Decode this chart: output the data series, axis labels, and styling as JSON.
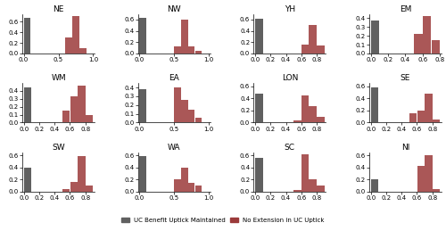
{
  "regions_order": [
    [
      "NE",
      "NW",
      "YH",
      "EM"
    ],
    [
      "WM",
      "EA",
      "LON",
      "SE"
    ],
    [
      "SW",
      "WA",
      "SC",
      "NI"
    ]
  ],
  "color_gray": "#606060",
  "color_red": "#9b3a3a",
  "color_red_alpha": 0.85,
  "legend_gray": "UC Benefit Uptick Maintained",
  "legend_red": "No Extension in UC Uptick",
  "subplots": {
    "NE": {
      "bin_width": 0.1,
      "gray_bins": [
        0.0
      ],
      "gray_vals": [
        0.68
      ],
      "red_bins": [
        0.6,
        0.7,
        0.8
      ],
      "red_vals": [
        0.3,
        0.7,
        0.1
      ],
      "xlim": [
        -0.02,
        1.02
      ],
      "ylim": [
        0,
        0.75
      ],
      "xticks": [
        0,
        0.5,
        1.0
      ],
      "yticks": [
        0,
        0.2,
        0.4,
        0.6
      ]
    },
    "NW": {
      "bin_width": 0.1,
      "gray_bins": [
        0.0
      ],
      "gray_vals": [
        0.63
      ],
      "red_bins": [
        0.5,
        0.6,
        0.7,
        0.8
      ],
      "red_vals": [
        0.12,
        0.6,
        0.12,
        0.05
      ],
      "xlim": [
        -0.02,
        1.02
      ],
      "ylim": [
        0,
        0.7
      ],
      "xticks": [
        0,
        0.5,
        1.0
      ],
      "yticks": [
        0,
        0.2,
        0.4,
        0.6
      ]
    },
    "YH": {
      "bin_width": 0.1,
      "gray_bins": [
        0.0
      ],
      "gray_vals": [
        0.62
      ],
      "red_bins": [
        0.6,
        0.7,
        0.8
      ],
      "red_vals": [
        0.16,
        0.51,
        0.14
      ],
      "xlim": [
        -0.02,
        0.92
      ],
      "ylim": [
        0,
        0.7
      ],
      "xticks": [
        0,
        0.2,
        0.4,
        0.6,
        0.8
      ],
      "yticks": [
        0,
        0.2,
        0.4,
        0.6
      ]
    },
    "EM": {
      "bin_width": 0.1,
      "gray_bins": [
        0.0
      ],
      "gray_vals": [
        0.37
      ],
      "red_bins": [
        0.5,
        0.6,
        0.7
      ],
      "red_vals": [
        0.22,
        0.42,
        0.15
      ],
      "xlim": [
        -0.02,
        0.82
      ],
      "ylim": [
        0,
        0.45
      ],
      "xticks": [
        0,
        0.2,
        0.4,
        0.6,
        0.8
      ],
      "yticks": [
        0,
        0.1,
        0.2,
        0.3,
        0.4
      ]
    },
    "WM": {
      "bin_width": 0.1,
      "gray_bins": [
        0.0
      ],
      "gray_vals": [
        0.45
      ],
      "red_bins": [
        0.5,
        0.6,
        0.7,
        0.8
      ],
      "red_vals": [
        0.15,
        0.33,
        0.47,
        0.1
      ],
      "xlim": [
        -0.02,
        0.92
      ],
      "ylim": [
        0,
        0.5
      ],
      "xticks": [
        0,
        0.2,
        0.4,
        0.6,
        0.8
      ],
      "yticks": [
        0,
        0.1,
        0.2,
        0.3,
        0.4
      ]
    },
    "EA": {
      "bin_width": 0.1,
      "gray_bins": [
        0.0
      ],
      "gray_vals": [
        0.38
      ],
      "red_bins": [
        0.5,
        0.6,
        0.7,
        0.8
      ],
      "red_vals": [
        0.4,
        0.26,
        0.15,
        0.05
      ],
      "xlim": [
        -0.02,
        1.02
      ],
      "ylim": [
        0,
        0.45
      ],
      "xticks": [
        0,
        0.5,
        1.0
      ],
      "yticks": [
        0,
        0.1,
        0.2,
        0.3,
        0.4
      ]
    },
    "LON": {
      "bin_width": 0.1,
      "gray_bins": [
        0.0
      ],
      "gray_vals": [
        0.48
      ],
      "red_bins": [
        0.5,
        0.6,
        0.7,
        0.8
      ],
      "red_vals": [
        0.04,
        0.44,
        0.27,
        0.1
      ],
      "xlim": [
        -0.02,
        0.92
      ],
      "ylim": [
        0,
        0.65
      ],
      "xticks": [
        0,
        0.2,
        0.4,
        0.6,
        0.8
      ],
      "yticks": [
        0,
        0.2,
        0.4,
        0.6
      ]
    },
    "SE": {
      "bin_width": 0.1,
      "gray_bins": [
        0.0
      ],
      "gray_vals": [
        0.58
      ],
      "red_bins": [
        0.5,
        0.6,
        0.7,
        0.8
      ],
      "red_vals": [
        0.16,
        0.2,
        0.48,
        0.05
      ],
      "xlim": [
        -0.02,
        0.92
      ],
      "ylim": [
        0,
        0.65
      ],
      "xticks": [
        0,
        0.2,
        0.4,
        0.6,
        0.8
      ],
      "yticks": [
        0,
        0.2,
        0.4,
        0.6
      ]
    },
    "SW": {
      "bin_width": 0.1,
      "gray_bins": [
        0.0
      ],
      "gray_vals": [
        0.4
      ],
      "red_bins": [
        0.5,
        0.6,
        0.7,
        0.8
      ],
      "red_vals": [
        0.04,
        0.16,
        0.58,
        0.1
      ],
      "xlim": [
        -0.02,
        0.92
      ],
      "ylim": [
        0,
        0.65
      ],
      "xticks": [
        0,
        0.2,
        0.4,
        0.6,
        0.8
      ],
      "yticks": [
        0,
        0.2,
        0.4,
        0.6
      ]
    },
    "WA": {
      "bin_width": 0.1,
      "gray_bins": [
        0.0
      ],
      "gray_vals": [
        0.58
      ],
      "red_bins": [
        0.5,
        0.6,
        0.7,
        0.8
      ],
      "red_vals": [
        0.2,
        0.4,
        0.15,
        0.1
      ],
      "xlim": [
        -0.02,
        1.02
      ],
      "ylim": [
        0,
        0.65
      ],
      "xticks": [
        0,
        0.5,
        1.0
      ],
      "yticks": [
        0,
        0.2,
        0.4,
        0.6
      ]
    },
    "SC": {
      "bin_width": 0.1,
      "gray_bins": [
        0.0
      ],
      "gray_vals": [
        0.55
      ],
      "red_bins": [
        0.5,
        0.6,
        0.7,
        0.8
      ],
      "red_vals": [
        0.03,
        0.62,
        0.2,
        0.1
      ],
      "xlim": [
        -0.02,
        0.92
      ],
      "ylim": [
        0,
        0.65
      ],
      "xticks": [
        0,
        0.2,
        0.4,
        0.6,
        0.8
      ],
      "yticks": [
        0,
        0.2,
        0.4,
        0.6
      ]
    },
    "NI": {
      "bin_width": 0.1,
      "gray_bins": [
        0.0
      ],
      "gray_vals": [
        0.2
      ],
      "red_bins": [
        0.6,
        0.7,
        0.8
      ],
      "red_vals": [
        0.42,
        0.6,
        0.05
      ],
      "xlim": [
        -0.02,
        0.92
      ],
      "ylim": [
        0,
        0.65
      ],
      "xticks": [
        0,
        0.2,
        0.4,
        0.6,
        0.8
      ],
      "yticks": [
        0,
        0.2,
        0.4,
        0.6
      ]
    }
  }
}
